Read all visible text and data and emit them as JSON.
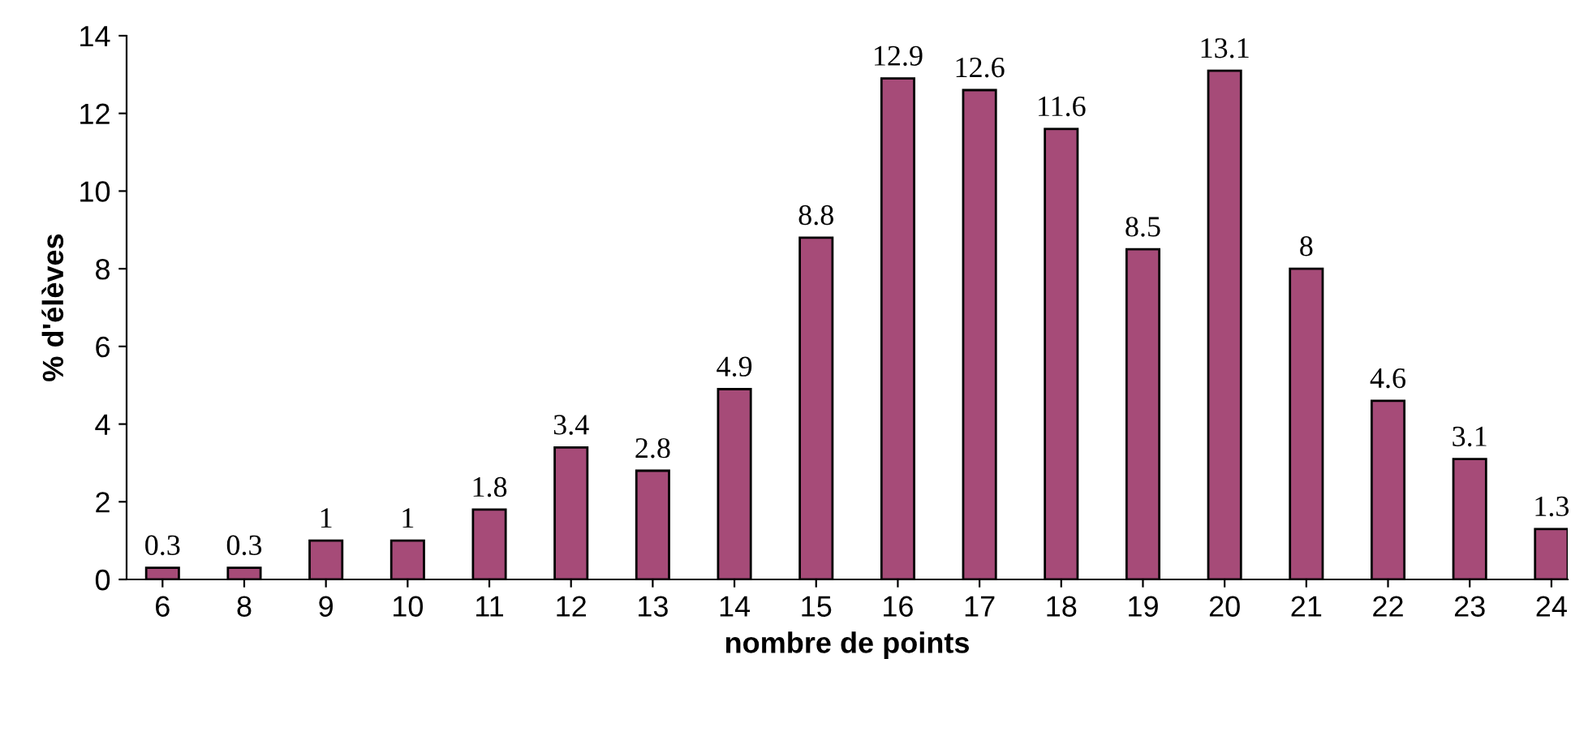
{
  "chart_data": {
    "type": "bar",
    "xlabel": "nombre de points",
    "ylabel": "% d'élèves",
    "categories": [
      "6",
      "8",
      "9",
      "10",
      "11",
      "12",
      "13",
      "14",
      "15",
      "16",
      "17",
      "18",
      "19",
      "20",
      "21",
      "22",
      "23",
      "24"
    ],
    "values": [
      0.3,
      0.3,
      1,
      1,
      1.8,
      3.4,
      2.8,
      4.9,
      8.8,
      12.9,
      12.6,
      11.6,
      8.5,
      13.1,
      8,
      4.6,
      3.1,
      1.3
    ],
    "color": "#a64b78",
    "ylim": [
      0,
      14
    ],
    "yticks": [
      0,
      2,
      4,
      6,
      8,
      10,
      12,
      14
    ],
    "data_labels": true,
    "grid": false,
    "legend": false
  }
}
